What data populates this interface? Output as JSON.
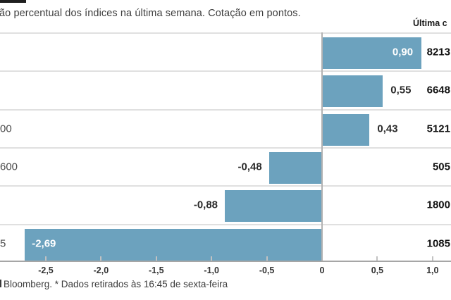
{
  "title": "ão percentual dos índices na última semana. Cotação em pontos.",
  "column_header": "Última c",
  "footer": "Bloomberg.  * Dados retirados às 16:45 de sexta-feira",
  "colors": {
    "bar": "#6CA2BE",
    "inside_label": "#ffffff",
    "outside_label": "#2b2b2b",
    "row_separator": "#e0e0e0",
    "axis": "#a6a6a6",
    "header_bar": "#1f1f1f"
  },
  "chart_data": {
    "type": "bar",
    "orientation": "horizontal",
    "title": "ão percentual dos índices na última semana. Cotação em pontos.",
    "categories": [
      "",
      "",
      "00",
      "600",
      "",
      "5"
    ],
    "values": [
      0.9,
      0.55,
      0.43,
      -0.48,
      -0.88,
      -2.69
    ],
    "value_labels": [
      "0,90",
      "0,55",
      "0,43",
      "-0,48",
      "-0,88",
      "-2,69"
    ],
    "label_pos": [
      "in",
      "out",
      "out",
      "out",
      "out",
      "in"
    ],
    "last_quotes": [
      "8213",
      "6648",
      "5121",
      "505",
      "1800",
      "1085"
    ],
    "last_quote_header": "Última c",
    "x_ticks": [
      "-2,5",
      "-2,0",
      "-1,5",
      "-1,0",
      "-0,5",
      "0",
      "0,5",
      "1,0"
    ],
    "x_tick_values": [
      -2.5,
      -2.0,
      -1.5,
      -1.0,
      -0.5,
      0,
      0.5,
      1.0
    ],
    "xlim": [
      -2.91,
      1.17
    ],
    "grid": "horizontal row separators only",
    "legend": "none",
    "source": "Bloomberg.  * Dados retirados às 16:45 de sexta-feira"
  }
}
